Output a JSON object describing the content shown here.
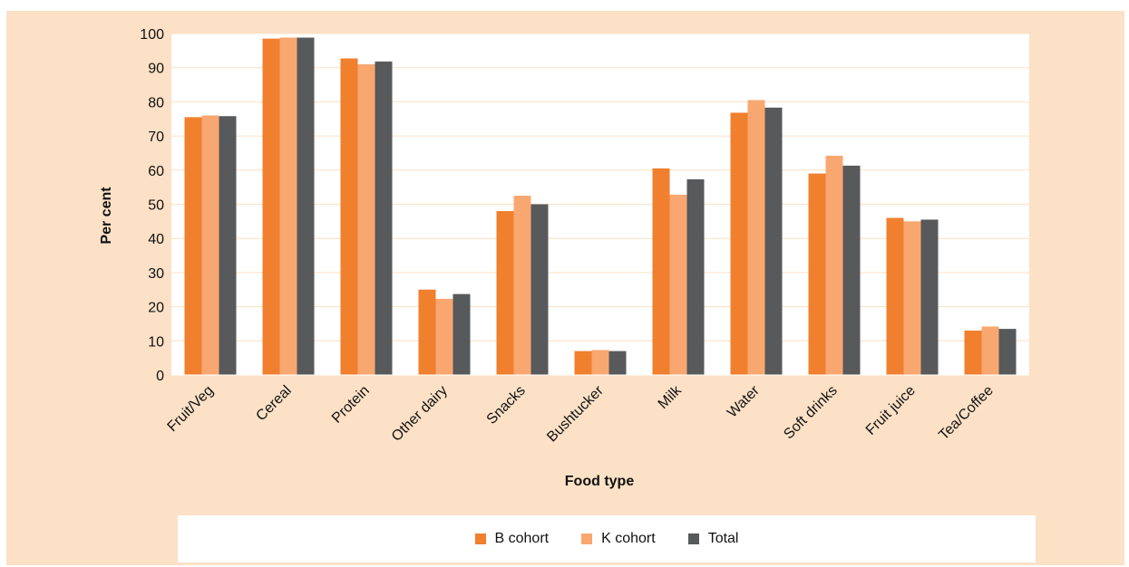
{
  "chart_data": {
    "type": "bar",
    "title": "",
    "xlabel": "Food type",
    "ylabel": "Per cent",
    "ylim": [
      0,
      100
    ],
    "yticks": [
      0,
      10,
      20,
      30,
      40,
      50,
      60,
      70,
      80,
      90,
      100
    ],
    "grid": true,
    "legend_position": "bottom",
    "categories": [
      "Fruit/Veg",
      "Cereal",
      "Protein",
      "Other dairy",
      "Snacks",
      "Bushtucker",
      "Milk",
      "Water",
      "Soft drinks",
      "Fruit juice",
      "Tea/Coffee"
    ],
    "series": [
      {
        "name": "B cohort",
        "color": "#f07f2e",
        "values": [
          75.5,
          98.5,
          92.7,
          25.0,
          48.0,
          7.0,
          60.5,
          76.8,
          59.0,
          46.0,
          13.0
        ]
      },
      {
        "name": "K cohort",
        "color": "#f9a770",
        "values": [
          76.0,
          98.8,
          91.0,
          22.3,
          52.5,
          7.3,
          52.8,
          80.5,
          64.2,
          45.0,
          14.2
        ]
      },
      {
        "name": "Total",
        "color": "#58595b",
        "values": [
          75.8,
          98.8,
          91.8,
          23.7,
          50.0,
          7.0,
          57.3,
          78.3,
          61.3,
          45.5,
          13.5
        ]
      }
    ]
  },
  "colors": {
    "frame_background": "#fce1c6",
    "plot_background": "#ffffff",
    "gridline": "#fce1c6"
  }
}
